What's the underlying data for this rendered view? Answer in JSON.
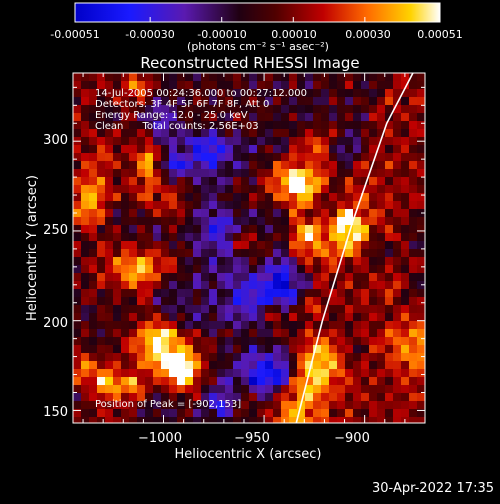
{
  "colorbar": {
    "ticks": [
      "-0.00051",
      "-0.00030",
      "-0.00010",
      "0.00010",
      "0.00030",
      "0.00051"
    ],
    "tick_values": [
      -0.00051,
      -0.0003,
      -0.0001,
      0.0001,
      0.0003,
      0.00051
    ],
    "units": "(photons cm⁻² s⁻¹ asec⁻²)",
    "range": [
      -0.00051,
      0.00051
    ]
  },
  "chart_data": {
    "type": "heatmap",
    "title": "Reconstructed RHESSI Image",
    "xlabel": "Heliocentric X (arcsec)",
    "ylabel": "Heliocentric Y (arcsec)",
    "xlim": [
      -1045,
      -870
    ],
    "ylim": [
      143,
      338
    ],
    "xticks": [
      -1000,
      -950,
      -900
    ],
    "xtick_labels": [
      "−1000",
      "−950",
      "−900"
    ],
    "yticks": [
      150,
      200,
      250,
      300
    ],
    "ytick_labels": [
      "150",
      "200",
      "250",
      "300"
    ],
    "colormap": "blue-purple-red-yellow-white",
    "annotations": [
      "14-Jul-2005 00:24:36.000 to 00:27:12.000",
      "Detectors: 3F 4F 5F 6F 7F 8F, Att 0",
      "Energy Range: 12.0 - 25.0 keV",
      "Clean      Total counts: 2.56E+03"
    ],
    "peak_label": "Position of Peak = [-902,153]",
    "peak": [
      -902,
      153
    ],
    "limb": {
      "label": "solar limb",
      "x": [
        -934,
        -921,
        -906,
        -889,
        -876
      ],
      "y": [
        143,
        200,
        255,
        310,
        338
      ]
    }
  },
  "timestamp": "30-Apr-2022 17:35"
}
